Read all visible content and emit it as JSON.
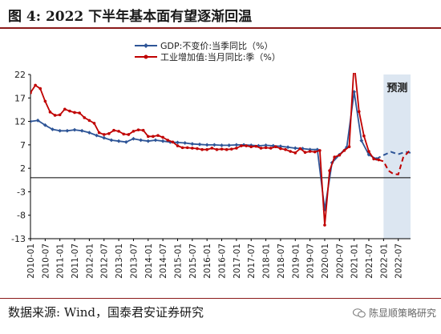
{
  "title": "图 4:  2022 下半年基本面有望逐渐回温",
  "source": "数据来源:  Wind，国泰君安证券研究",
  "watermark": "陈显顺策略研究",
  "chart_data": {
    "type": "line",
    "annotation": "预测",
    "ylim": [
      -13,
      22
    ],
    "yticks": [
      22,
      17,
      12,
      7,
      2,
      -3,
      -8,
      -13
    ],
    "xticks": [
      "2010-01",
      "2010-07",
      "2011-01",
      "2011-07",
      "2012-01",
      "2012-07",
      "2013-01",
      "2013-07",
      "2014-01",
      "2014-07",
      "2015-01",
      "2015-07",
      "2016-01",
      "2016-07",
      "2017-01",
      "2017-07",
      "2018-01",
      "2018-07",
      "2019-01",
      "2019-07",
      "2020-01",
      "2020-07",
      "2021-01",
      "2021-07",
      "2022-01",
      "2022-07"
    ],
    "x_start": "2010-01",
    "x_end": "2022-12",
    "forecast_start": "2022-01",
    "colors": {
      "gdp": "#2e5597",
      "ip": "#c00000",
      "forecast_band": "#dce6f1"
    },
    "series": [
      {
        "name": "GDP:不变价:当季同比（%）",
        "color": "#2e5597",
        "marker": "diamond",
        "points": [
          [
            "2010-01",
            12.0
          ],
          [
            "2010-04",
            12.2
          ],
          [
            "2010-07",
            11.2
          ],
          [
            "2010-10",
            10.3
          ],
          [
            "2011-01",
            10.0
          ],
          [
            "2011-04",
            10.0
          ],
          [
            "2011-07",
            10.2
          ],
          [
            "2011-10",
            10.0
          ],
          [
            "2012-01",
            9.6
          ],
          [
            "2012-04",
            9.0
          ],
          [
            "2012-07",
            8.5
          ],
          [
            "2012-10",
            8.0
          ],
          [
            "2013-01",
            7.8
          ],
          [
            "2013-04",
            7.6
          ],
          [
            "2013-07",
            8.3
          ],
          [
            "2013-10",
            8.0
          ],
          [
            "2014-01",
            7.8
          ],
          [
            "2014-04",
            8.0
          ],
          [
            "2014-07",
            7.8
          ],
          [
            "2014-10",
            7.6
          ],
          [
            "2015-01",
            7.5
          ],
          [
            "2015-04",
            7.4
          ],
          [
            "2015-07",
            7.2
          ],
          [
            "2015-10",
            7.1
          ],
          [
            "2016-01",
            7.0
          ],
          [
            "2016-04",
            7.0
          ],
          [
            "2016-07",
            6.9
          ],
          [
            "2016-10",
            6.9
          ],
          [
            "2017-01",
            7.0
          ],
          [
            "2017-04",
            7.0
          ],
          [
            "2017-07",
            6.9
          ],
          [
            "2017-10",
            6.8
          ],
          [
            "2018-01",
            6.9
          ],
          [
            "2018-04",
            6.8
          ],
          [
            "2018-07",
            6.7
          ],
          [
            "2018-10",
            6.5
          ],
          [
            "2019-01",
            6.3
          ],
          [
            "2019-04",
            6.2
          ],
          [
            "2019-07",
            6.0
          ],
          [
            "2019-10",
            6.0
          ],
          [
            "2020-01",
            -6.8
          ],
          [
            "2020-04",
            3.2
          ],
          [
            "2020-07",
            4.9
          ],
          [
            "2020-10",
            6.5
          ],
          [
            "2021-01",
            18.3
          ],
          [
            "2021-04",
            7.9
          ],
          [
            "2021-07",
            4.9
          ],
          [
            "2021-10",
            4.0
          ]
        ],
        "forecast": [
          [
            "2021-10",
            4.0
          ],
          [
            "2022-01",
            4.8
          ],
          [
            "2022-04",
            5.5
          ],
          [
            "2022-07",
            5.0
          ],
          [
            "2022-10",
            5.5
          ],
          [
            "2022-12",
            5.3
          ]
        ]
      },
      {
        "name": "工业增加值:当月同比:季（%）",
        "color": "#c00000",
        "marker": "circle",
        "points": [
          [
            "2010-01",
            18.1
          ],
          [
            "2010-03",
            19.7
          ],
          [
            "2010-05",
            19.0
          ],
          [
            "2010-07",
            16.3
          ],
          [
            "2010-09",
            14.0
          ],
          [
            "2010-11",
            13.3
          ],
          [
            "2011-01",
            13.4
          ],
          [
            "2011-03",
            14.6
          ],
          [
            "2011-05",
            14.2
          ],
          [
            "2011-07",
            13.9
          ],
          [
            "2011-09",
            13.8
          ],
          [
            "2011-11",
            12.8
          ],
          [
            "2012-01",
            12.2
          ],
          [
            "2012-03",
            11.6
          ],
          [
            "2012-05",
            9.6
          ],
          [
            "2012-07",
            9.2
          ],
          [
            "2012-09",
            9.4
          ],
          [
            "2012-11",
            10.1
          ],
          [
            "2013-01",
            9.9
          ],
          [
            "2013-03",
            9.3
          ],
          [
            "2013-05",
            9.2
          ],
          [
            "2013-07",
            9.9
          ],
          [
            "2013-09",
            10.2
          ],
          [
            "2013-11",
            10.1
          ],
          [
            "2014-01",
            8.8
          ],
          [
            "2014-03",
            8.8
          ],
          [
            "2014-05",
            9.0
          ],
          [
            "2014-07",
            8.6
          ],
          [
            "2014-09",
            8.0
          ],
          [
            "2014-11",
            7.6
          ],
          [
            "2015-01",
            6.8
          ],
          [
            "2015-03",
            6.4
          ],
          [
            "2015-05",
            6.4
          ],
          [
            "2015-07",
            6.3
          ],
          [
            "2015-09",
            6.2
          ],
          [
            "2015-11",
            6.0
          ],
          [
            "2016-01",
            6.0
          ],
          [
            "2016-03",
            6.3
          ],
          [
            "2016-05",
            6.0
          ],
          [
            "2016-07",
            6.1
          ],
          [
            "2016-09",
            6.0
          ],
          [
            "2016-11",
            6.1
          ],
          [
            "2017-01",
            6.3
          ],
          [
            "2017-03",
            6.8
          ],
          [
            "2017-05",
            6.8
          ],
          [
            "2017-07",
            6.6
          ],
          [
            "2017-09",
            6.7
          ],
          [
            "2017-11",
            6.3
          ],
          [
            "2018-01",
            6.4
          ],
          [
            "2018-03",
            6.3
          ],
          [
            "2018-05",
            6.6
          ],
          [
            "2018-07",
            6.2
          ],
          [
            "2018-09",
            6.0
          ],
          [
            "2018-11",
            5.6
          ],
          [
            "2019-01",
            5.3
          ],
          [
            "2019-03",
            6.2
          ],
          [
            "2019-05",
            5.4
          ],
          [
            "2019-07",
            5.6
          ],
          [
            "2019-09",
            5.5
          ],
          [
            "2019-11",
            5.8
          ],
          [
            "2020-01",
            -10.1
          ],
          [
            "2020-03",
            1.5
          ],
          [
            "2020-05",
            4.4
          ],
          [
            "2020-07",
            4.8
          ],
          [
            "2020-09",
            5.8
          ],
          [
            "2020-11",
            6.6
          ],
          [
            "2021-01",
            24.5
          ],
          [
            "2021-03",
            14.1
          ],
          [
            "2021-05",
            8.9
          ],
          [
            "2021-07",
            5.6
          ],
          [
            "2021-09",
            4.0
          ],
          [
            "2021-11",
            3.8
          ]
        ],
        "forecast": [
          [
            "2021-11",
            3.8
          ],
          [
            "2022-01",
            3.5
          ],
          [
            "2022-03",
            1.5
          ],
          [
            "2022-05",
            0.8
          ],
          [
            "2022-07",
            0.7
          ],
          [
            "2022-09",
            4.3
          ],
          [
            "2022-12",
            6.0
          ]
        ]
      }
    ]
  }
}
